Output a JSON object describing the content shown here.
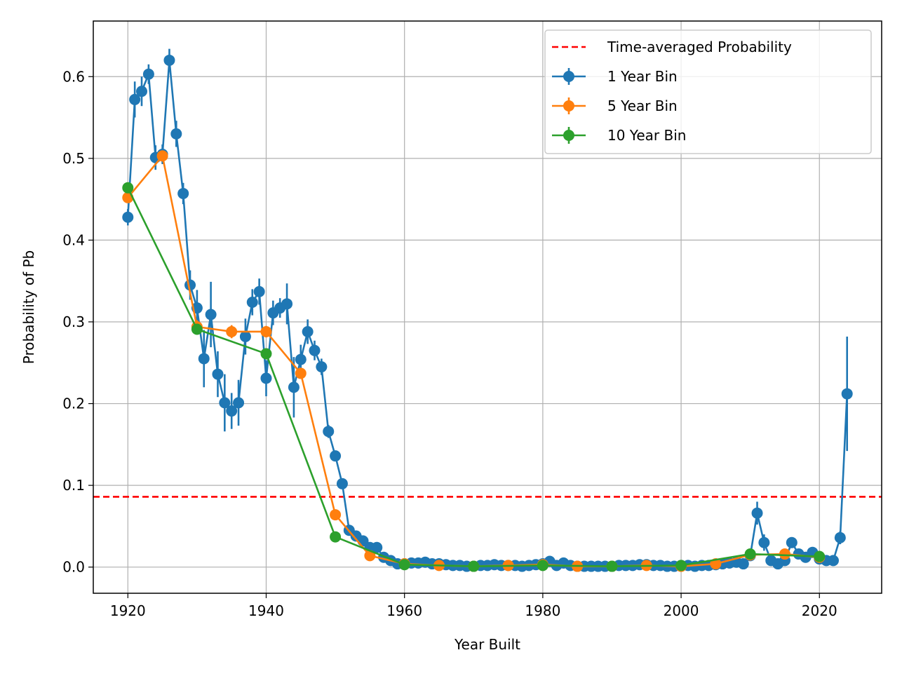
{
  "chart_data": {
    "type": "line",
    "title": "",
    "xlabel": "Year Built",
    "ylabel": "Probability of Pb",
    "xlim": [
      1915,
      2029
    ],
    "ylim": [
      -0.032,
      0.668
    ],
    "xticks": [
      1920,
      1940,
      1960,
      1980,
      2000,
      2020
    ],
    "xtick_labels": [
      "1920",
      "1940",
      "1960",
      "1980",
      "2000",
      "2020"
    ],
    "yticks": [
      0.0,
      0.1,
      0.2,
      0.3,
      0.4,
      0.5,
      0.6
    ],
    "ytick_labels": [
      "0.0",
      "0.1",
      "0.2",
      "0.3",
      "0.4",
      "0.5",
      "0.6"
    ],
    "grid": true,
    "legend_position": "top-right",
    "reference_line": {
      "name": "Time-averaged Probability",
      "y": 0.086,
      "color": "#ff0000",
      "style": "dashed"
    },
    "series": [
      {
        "name": "1 Year Bin",
        "color": "#1f77b4",
        "points": [
          [
            1920,
            0.428,
            0.01
          ],
          [
            1921,
            0.572,
            0.022
          ],
          [
            1922,
            0.582,
            0.018
          ],
          [
            1923,
            0.603,
            0.012
          ],
          [
            1924,
            0.501,
            0.015
          ],
          [
            1925,
            0.505,
            0.012
          ],
          [
            1926,
            0.62,
            0.014
          ],
          [
            1927,
            0.53,
            0.016
          ],
          [
            1928,
            0.457,
            0.013
          ],
          [
            1929,
            0.345,
            0.018
          ],
          [
            1930,
            0.317,
            0.022
          ],
          [
            1931,
            0.255,
            0.035
          ],
          [
            1932,
            0.309,
            0.04
          ],
          [
            1933,
            0.236,
            0.028
          ],
          [
            1934,
            0.201,
            0.035
          ],
          [
            1935,
            0.191,
            0.022
          ],
          [
            1936,
            0.201,
            0.028
          ],
          [
            1937,
            0.282,
            0.022
          ],
          [
            1938,
            0.324,
            0.016
          ],
          [
            1939,
            0.337,
            0.016
          ],
          [
            1940,
            0.231,
            0.022
          ],
          [
            1941,
            0.311,
            0.015
          ],
          [
            1942,
            0.317,
            0.012
          ],
          [
            1943,
            0.322,
            0.025
          ],
          [
            1944,
            0.22,
            0.037
          ],
          [
            1945,
            0.254,
            0.018
          ],
          [
            1946,
            0.288,
            0.015
          ],
          [
            1947,
            0.265,
            0.012
          ],
          [
            1948,
            0.245,
            0.01
          ],
          [
            1949,
            0.166,
            0.008
          ],
          [
            1950,
            0.136,
            0.006
          ],
          [
            1951,
            0.102,
            0.006
          ],
          [
            1952,
            0.045,
            0.004
          ],
          [
            1953,
            0.038,
            0.003
          ],
          [
            1954,
            0.032,
            0.003
          ],
          [
            1955,
            0.024,
            0.002
          ],
          [
            1956,
            0.024,
            0.002
          ],
          [
            1957,
            0.012,
            0.002
          ],
          [
            1958,
            0.008,
            0.002
          ],
          [
            1959,
            0.004,
            0.001
          ],
          [
            1960,
            0.004,
            0.001
          ],
          [
            1961,
            0.005,
            0.001
          ],
          [
            1962,
            0.005,
            0.001
          ],
          [
            1963,
            0.006,
            0.001
          ],
          [
            1964,
            0.004,
            0.001
          ],
          [
            1965,
            0.004,
            0.001
          ],
          [
            1966,
            0.003,
            0.001
          ],
          [
            1967,
            0.002,
            0.001
          ],
          [
            1968,
            0.002,
            0.001
          ],
          [
            1969,
            0.001,
            0.001
          ],
          [
            1970,
            0.001,
            0.001
          ],
          [
            1971,
            0.002,
            0.001
          ],
          [
            1972,
            0.002,
            0.001
          ],
          [
            1973,
            0.003,
            0.001
          ],
          [
            1974,
            0.002,
            0.001
          ],
          [
            1975,
            0.002,
            0.001
          ],
          [
            1976,
            0.002,
            0.001
          ],
          [
            1977,
            0.001,
            0.001
          ],
          [
            1978,
            0.002,
            0.001
          ],
          [
            1979,
            0.003,
            0.001
          ],
          [
            1980,
            0.004,
            0.001
          ],
          [
            1981,
            0.007,
            0.002
          ],
          [
            1982,
            0.002,
            0.001
          ],
          [
            1983,
            0.005,
            0.001
          ],
          [
            1984,
            0.002,
            0.001
          ],
          [
            1985,
            0.001,
            0.001
          ],
          [
            1986,
            0.001,
            0.001
          ],
          [
            1987,
            0.001,
            0.001
          ],
          [
            1988,
            0.001,
            0.001
          ],
          [
            1989,
            0.001,
            0.001
          ],
          [
            1990,
            0.001,
            0.001
          ],
          [
            1991,
            0.002,
            0.001
          ],
          [
            1992,
            0.002,
            0.001
          ],
          [
            1993,
            0.002,
            0.001
          ],
          [
            1994,
            0.003,
            0.001
          ],
          [
            1995,
            0.003,
            0.001
          ],
          [
            1996,
            0.002,
            0.001
          ],
          [
            1997,
            0.002,
            0.001
          ],
          [
            1998,
            0.001,
            0.001
          ],
          [
            1999,
            0.001,
            0.001
          ],
          [
            2000,
            0.002,
            0.001
          ],
          [
            2001,
            0.002,
            0.001
          ],
          [
            2002,
            0.001,
            0.001
          ],
          [
            2003,
            0.002,
            0.001
          ],
          [
            2004,
            0.002,
            0.001
          ],
          [
            2005,
            0.003,
            0.001
          ],
          [
            2006,
            0.004,
            0.001
          ],
          [
            2007,
            0.005,
            0.001
          ],
          [
            2008,
            0.006,
            0.001
          ],
          [
            2009,
            0.004,
            0.001
          ],
          [
            2010,
            0.014,
            0.003
          ],
          [
            2011,
            0.066,
            0.014
          ],
          [
            2012,
            0.03,
            0.01
          ],
          [
            2013,
            0.008,
            0.003
          ],
          [
            2014,
            0.004,
            0.002
          ],
          [
            2015,
            0.008,
            0.003
          ],
          [
            2016,
            0.03,
            0.006
          ],
          [
            2017,
            0.016,
            0.004
          ],
          [
            2018,
            0.012,
            0.003
          ],
          [
            2019,
            0.018,
            0.003
          ],
          [
            2020,
            0.01,
            0.002
          ],
          [
            2021,
            0.008,
            0.002
          ],
          [
            2022,
            0.008,
            0.002
          ],
          [
            2023,
            0.036,
            0.008
          ],
          [
            2024,
            0.212,
            0.07
          ]
        ]
      },
      {
        "name": "5 Year Bin",
        "color": "#ff7f0e",
        "points": [
          [
            1920,
            0.452,
            0.006
          ],
          [
            1925,
            0.503,
            0.006
          ],
          [
            1930,
            0.294,
            0.008
          ],
          [
            1935,
            0.288,
            0.008
          ],
          [
            1940,
            0.288,
            0.007
          ],
          [
            1945,
            0.237,
            0.006
          ],
          [
            1950,
            0.064,
            0.003
          ],
          [
            1955,
            0.014,
            0.001
          ],
          [
            1960,
            0.004,
            0.001
          ],
          [
            1965,
            0.002,
            0.001
          ],
          [
            1970,
            0.001,
            0.001
          ],
          [
            1975,
            0.002,
            0.001
          ],
          [
            1980,
            0.003,
            0.001
          ],
          [
            1985,
            0.001,
            0.001
          ],
          [
            1990,
            0.001,
            0.001
          ],
          [
            1995,
            0.002,
            0.001
          ],
          [
            2000,
            0.001,
            0.001
          ],
          [
            2005,
            0.004,
            0.001
          ],
          [
            2010,
            0.015,
            0.002
          ],
          [
            2015,
            0.016,
            0.002
          ],
          [
            2020,
            0.012,
            0.002
          ]
        ]
      },
      {
        "name": "10 Year Bin",
        "color": "#2ca02c",
        "points": [
          [
            1920,
            0.464,
            0.005
          ],
          [
            1930,
            0.291,
            0.006
          ],
          [
            1940,
            0.261,
            0.005
          ],
          [
            1950,
            0.037,
            0.002
          ],
          [
            1960,
            0.003,
            0.001
          ],
          [
            1970,
            0.001,
            0.001
          ],
          [
            1980,
            0.002,
            0.001
          ],
          [
            1990,
            0.001,
            0.001
          ],
          [
            2000,
            0.002,
            0.001
          ],
          [
            2010,
            0.016,
            0.002
          ],
          [
            2020,
            0.013,
            0.002
          ]
        ]
      }
    ]
  }
}
